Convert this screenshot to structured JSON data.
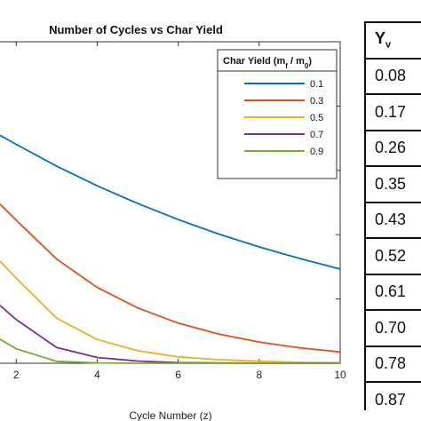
{
  "chart_data": {
    "type": "line",
    "title": "Number of Cycles vs Char Yield",
    "xlabel": "Cycle Number (z)",
    "ylabel": "",
    "xlim": [
      1.6,
      10
    ],
    "ylim": [
      0,
      1
    ],
    "xticks": [
      2,
      4,
      6,
      8,
      10
    ],
    "grid": false,
    "legend": {
      "title": "Char Yield (m",
      "title_sub_f": "f",
      "title_mid": " / m",
      "title_sub_0": "0",
      "title_end": ")",
      "placement": "top-right"
    },
    "series": [
      {
        "name": "0.1",
        "color": "#0072BD",
        "x": [
          1.6,
          2,
          3,
          4,
          5,
          6,
          7,
          8,
          9,
          10
        ],
        "y": [
          0.709,
          0.681,
          0.613,
          0.552,
          0.497,
          0.447,
          0.402,
          0.362,
          0.326,
          0.293
        ]
      },
      {
        "name": "0.3",
        "color": "#D95319",
        "x": [
          1.6,
          2,
          3,
          4,
          5,
          6,
          7,
          8,
          9,
          10
        ],
        "y": [
          0.495,
          0.445,
          0.324,
          0.236,
          0.172,
          0.125,
          0.091,
          0.066,
          0.048,
          0.035
        ]
      },
      {
        "name": "0.5",
        "color": "#EDB120",
        "x": [
          1.6,
          2,
          3,
          4,
          5,
          6,
          7,
          8,
          9,
          10
        ],
        "y": [
          0.318,
          0.265,
          0.14,
          0.074,
          0.039,
          0.02,
          0.011,
          0.006,
          0.003,
          0.002
        ]
      },
      {
        "name": "0.7",
        "color": "#7E2F8E",
        "x": [
          1.6,
          2,
          3,
          4,
          5,
          6,
          7,
          8,
          9,
          10
        ],
        "y": [
          0.18,
          0.136,
          0.049,
          0.018,
          0.007,
          0.002,
          0.001,
          0.0,
          0.0,
          0.0
        ]
      },
      {
        "name": "0.9",
        "color": "#77AC30",
        "x": [
          1.6,
          2,
          3,
          4,
          5,
          6,
          7,
          8,
          9,
          10
        ],
        "y": [
          0.075,
          0.045,
          0.006,
          0.001,
          0.0,
          0.0,
          0.0,
          0.0,
          0.0,
          0.0
        ]
      }
    ]
  },
  "table": {
    "header_main": "Y",
    "header_sub": "v",
    "rows": [
      "0.08",
      "0.17",
      "0.26",
      "0.35",
      "0.43",
      "0.52",
      "0.61",
      "0.70",
      "0.78",
      "0.87"
    ]
  }
}
